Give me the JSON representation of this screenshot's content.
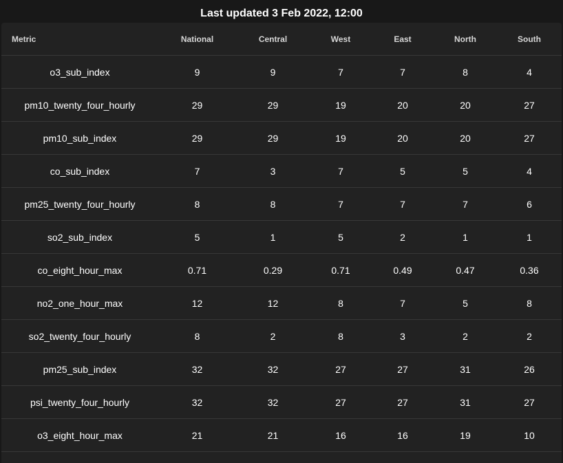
{
  "header": {
    "title": "Last updated 3 Feb 2022, 12:00"
  },
  "table": {
    "columns": [
      "Metric",
      "National",
      "Central",
      "West",
      "East",
      "North",
      "South"
    ],
    "rows": [
      [
        "o3_sub_index",
        "9",
        "9",
        "7",
        "7",
        "8",
        "4"
      ],
      [
        "pm10_twenty_four_hourly",
        "29",
        "29",
        "19",
        "20",
        "20",
        "27"
      ],
      [
        "pm10_sub_index",
        "29",
        "29",
        "19",
        "20",
        "20",
        "27"
      ],
      [
        "co_sub_index",
        "7",
        "3",
        "7",
        "5",
        "5",
        "4"
      ],
      [
        "pm25_twenty_four_hourly",
        "8",
        "8",
        "7",
        "7",
        "7",
        "6"
      ],
      [
        "so2_sub_index",
        "5",
        "1",
        "5",
        "2",
        "1",
        "1"
      ],
      [
        "co_eight_hour_max",
        "0.71",
        "0.29",
        "0.71",
        "0.49",
        "0.47",
        "0.36"
      ],
      [
        "no2_one_hour_max",
        "12",
        "12",
        "8",
        "7",
        "5",
        "8"
      ],
      [
        "so2_twenty_four_hourly",
        "8",
        "2",
        "8",
        "3",
        "2",
        "2"
      ],
      [
        "pm25_sub_index",
        "32",
        "32",
        "27",
        "27",
        "31",
        "26"
      ],
      [
        "psi_twenty_four_hourly",
        "32",
        "32",
        "27",
        "27",
        "31",
        "27"
      ],
      [
        "o3_eight_hour_max",
        "21",
        "21",
        "16",
        "16",
        "19",
        "10"
      ]
    ]
  },
  "colors": {
    "page_background": "#181818",
    "card_background": "#222222",
    "divider": "#383838",
    "header_text": "#d6d6d6",
    "cell_text": "#ffffff"
  }
}
